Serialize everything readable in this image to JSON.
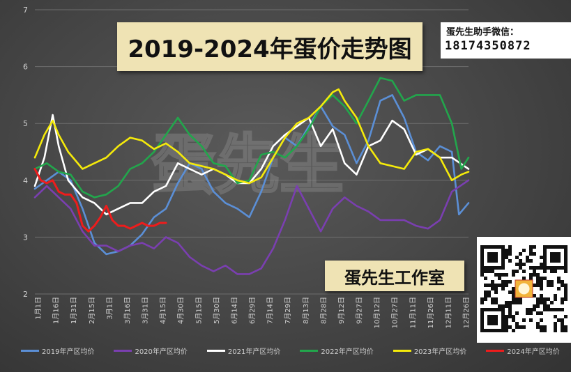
{
  "title": "2019-2024年蛋价走势图",
  "contact": {
    "label": "蛋先生助手微信：",
    "phone": "18174350872"
  },
  "studio": "蛋先生工作室",
  "watermark": "蛋先生",
  "chart_data": {
    "type": "line",
    "ylim": [
      2,
      7
    ],
    "yticks": [
      2,
      3,
      4,
      5,
      6,
      7
    ],
    "grid": true,
    "legend_position": "bottom",
    "xticks": [
      "1月1日",
      "1月16日",
      "1月31日",
      "2月15日",
      "3月1日",
      "3月16日",
      "3月31日",
      "4月15日",
      "4月30日",
      "5月15日",
      "5月30日",
      "6月14日",
      "6月29日",
      "7月14日",
      "7月29日",
      "8月13日",
      "8月28日",
      "9月12日",
      "9月27日",
      "10月12日",
      "10月27日",
      "11月11日",
      "11月26日",
      "12月11日",
      "12月26日"
    ],
    "series": [
      {
        "name": "2019年产区均价",
        "color": "#5b8fd6",
        "points": [
          [
            0,
            3.85
          ],
          [
            10,
            4.0
          ],
          [
            20,
            4.15
          ],
          [
            30,
            4.0
          ],
          [
            40,
            3.5
          ],
          [
            50,
            2.9
          ],
          [
            60,
            2.7
          ],
          [
            70,
            2.75
          ],
          [
            80,
            2.85
          ],
          [
            90,
            3.05
          ],
          [
            100,
            3.35
          ],
          [
            110,
            3.5
          ],
          [
            120,
            3.95
          ],
          [
            130,
            4.3
          ],
          [
            140,
            4.2
          ],
          [
            150,
            3.8
          ],
          [
            160,
            3.6
          ],
          [
            170,
            3.5
          ],
          [
            180,
            3.35
          ],
          [
            190,
            3.8
          ],
          [
            200,
            4.4
          ],
          [
            210,
            4.75
          ],
          [
            220,
            4.6
          ],
          [
            230,
            4.95
          ],
          [
            240,
            5.3
          ],
          [
            250,
            4.95
          ],
          [
            260,
            4.8
          ],
          [
            270,
            4.3
          ],
          [
            280,
            4.7
          ],
          [
            290,
            5.4
          ],
          [
            300,
            5.5
          ],
          [
            310,
            5.1
          ],
          [
            320,
            4.5
          ],
          [
            330,
            4.35
          ],
          [
            340,
            4.6
          ],
          [
            350,
            4.5
          ],
          [
            356,
            3.4
          ],
          [
            364,
            3.6
          ]
        ]
      },
      {
        "name": "2020年产区均价",
        "color": "#7a3fb0",
        "points": [
          [
            0,
            3.7
          ],
          [
            10,
            3.9
          ],
          [
            20,
            3.7
          ],
          [
            30,
            3.5
          ],
          [
            40,
            3.1
          ],
          [
            50,
            2.85
          ],
          [
            60,
            2.85
          ],
          [
            70,
            2.75
          ],
          [
            80,
            2.85
          ],
          [
            90,
            2.9
          ],
          [
            100,
            2.8
          ],
          [
            110,
            3.0
          ],
          [
            120,
            2.9
          ],
          [
            130,
            2.65
          ],
          [
            140,
            2.5
          ],
          [
            150,
            2.4
          ],
          [
            160,
            2.5
          ],
          [
            170,
            2.35
          ],
          [
            180,
            2.35
          ],
          [
            190,
            2.45
          ],
          [
            200,
            2.8
          ],
          [
            210,
            3.3
          ],
          [
            220,
            3.9
          ],
          [
            230,
            3.5
          ],
          [
            240,
            3.1
          ],
          [
            250,
            3.5
          ],
          [
            260,
            3.7
          ],
          [
            270,
            3.55
          ],
          [
            280,
            3.45
          ],
          [
            290,
            3.3
          ],
          [
            300,
            3.3
          ],
          [
            310,
            3.3
          ],
          [
            320,
            3.2
          ],
          [
            330,
            3.15
          ],
          [
            340,
            3.3
          ],
          [
            350,
            3.8
          ],
          [
            364,
            4.0
          ]
        ]
      },
      {
        "name": "2021年产区均价",
        "color": "#ffffff",
        "points": [
          [
            0,
            3.9
          ],
          [
            8,
            4.4
          ],
          [
            15,
            5.15
          ],
          [
            20,
            4.6
          ],
          [
            28,
            4.0
          ],
          [
            40,
            3.7
          ],
          [
            50,
            3.6
          ],
          [
            60,
            3.4
          ],
          [
            70,
            3.5
          ],
          [
            80,
            3.6
          ],
          [
            90,
            3.6
          ],
          [
            100,
            3.8
          ],
          [
            110,
            3.9
          ],
          [
            120,
            4.3
          ],
          [
            130,
            4.2
          ],
          [
            140,
            4.1
          ],
          [
            150,
            4.2
          ],
          [
            160,
            4.1
          ],
          [
            170,
            3.95
          ],
          [
            180,
            3.95
          ],
          [
            190,
            4.2
          ],
          [
            200,
            4.6
          ],
          [
            210,
            4.8
          ],
          [
            220,
            4.95
          ],
          [
            230,
            5.1
          ],
          [
            240,
            4.6
          ],
          [
            250,
            4.9
          ],
          [
            260,
            4.3
          ],
          [
            270,
            4.1
          ],
          [
            280,
            4.6
          ],
          [
            290,
            4.7
          ],
          [
            300,
            5.05
          ],
          [
            310,
            4.9
          ],
          [
            320,
            4.45
          ],
          [
            330,
            4.55
          ],
          [
            340,
            4.4
          ],
          [
            350,
            4.4
          ],
          [
            364,
            4.2
          ]
        ]
      },
      {
        "name": "2022年产区均价",
        "color": "#22a64c",
        "points": [
          [
            0,
            4.2
          ],
          [
            10,
            4.3
          ],
          [
            20,
            4.15
          ],
          [
            30,
            4.1
          ],
          [
            40,
            3.8
          ],
          [
            50,
            3.7
          ],
          [
            60,
            3.75
          ],
          [
            70,
            3.9
          ],
          [
            80,
            4.2
          ],
          [
            90,
            4.3
          ],
          [
            100,
            4.5
          ],
          [
            110,
            4.8
          ],
          [
            120,
            5.1
          ],
          [
            130,
            4.8
          ],
          [
            140,
            4.6
          ],
          [
            150,
            4.3
          ],
          [
            160,
            4.25
          ],
          [
            170,
            3.95
          ],
          [
            180,
            4.0
          ],
          [
            190,
            4.45
          ],
          [
            200,
            4.5
          ],
          [
            210,
            4.4
          ],
          [
            220,
            4.6
          ],
          [
            230,
            4.9
          ],
          [
            240,
            5.3
          ],
          [
            250,
            5.5
          ],
          [
            260,
            5.3
          ],
          [
            270,
            5.0
          ],
          [
            280,
            5.4
          ],
          [
            290,
            5.8
          ],
          [
            300,
            5.75
          ],
          [
            310,
            5.4
          ],
          [
            320,
            5.5
          ],
          [
            330,
            5.5
          ],
          [
            340,
            5.5
          ],
          [
            350,
            5.0
          ],
          [
            358,
            4.2
          ],
          [
            364,
            4.4
          ]
        ]
      },
      {
        "name": "2023年产区均价",
        "color": "#f5ea0a",
        "points": [
          [
            0,
            4.4
          ],
          [
            8,
            4.8
          ],
          [
            15,
            5.05
          ],
          [
            20,
            4.8
          ],
          [
            28,
            4.5
          ],
          [
            40,
            4.2
          ],
          [
            50,
            4.3
          ],
          [
            60,
            4.4
          ],
          [
            70,
            4.6
          ],
          [
            80,
            4.75
          ],
          [
            90,
            4.7
          ],
          [
            100,
            4.55
          ],
          [
            110,
            4.65
          ],
          [
            120,
            4.5
          ],
          [
            130,
            4.3
          ],
          [
            140,
            4.25
          ],
          [
            150,
            4.2
          ],
          [
            160,
            4.1
          ],
          [
            170,
            4.0
          ],
          [
            180,
            3.95
          ],
          [
            190,
            4.05
          ],
          [
            200,
            4.4
          ],
          [
            210,
            4.75
          ],
          [
            220,
            5.0
          ],
          [
            230,
            5.1
          ],
          [
            240,
            5.3
          ],
          [
            250,
            5.55
          ],
          [
            255,
            5.6
          ],
          [
            260,
            5.4
          ],
          [
            270,
            5.1
          ],
          [
            280,
            4.6
          ],
          [
            290,
            4.3
          ],
          [
            300,
            4.25
          ],
          [
            310,
            4.2
          ],
          [
            320,
            4.5
          ],
          [
            330,
            4.55
          ],
          [
            340,
            4.4
          ],
          [
            350,
            4.0
          ],
          [
            358,
            4.1
          ],
          [
            364,
            4.15
          ]
        ]
      },
      {
        "name": "2024年产区均价",
        "color": "#ee1c1c",
        "points": [
          [
            0,
            4.2
          ],
          [
            5,
            4.0
          ],
          [
            10,
            3.95
          ],
          [
            15,
            4.0
          ],
          [
            20,
            3.8
          ],
          [
            25,
            3.75
          ],
          [
            30,
            3.75
          ],
          [
            35,
            3.6
          ],
          [
            40,
            3.2
          ],
          [
            45,
            3.1
          ],
          [
            50,
            3.2
          ],
          [
            55,
            3.35
          ],
          [
            60,
            3.55
          ],
          [
            65,
            3.3
          ],
          [
            70,
            3.2
          ],
          [
            75,
            3.2
          ],
          [
            80,
            3.15
          ],
          [
            85,
            3.2
          ],
          [
            90,
            3.25
          ],
          [
            95,
            3.2
          ],
          [
            100,
            3.2
          ],
          [
            105,
            3.25
          ],
          [
            110,
            3.25
          ]
        ]
      }
    ]
  }
}
